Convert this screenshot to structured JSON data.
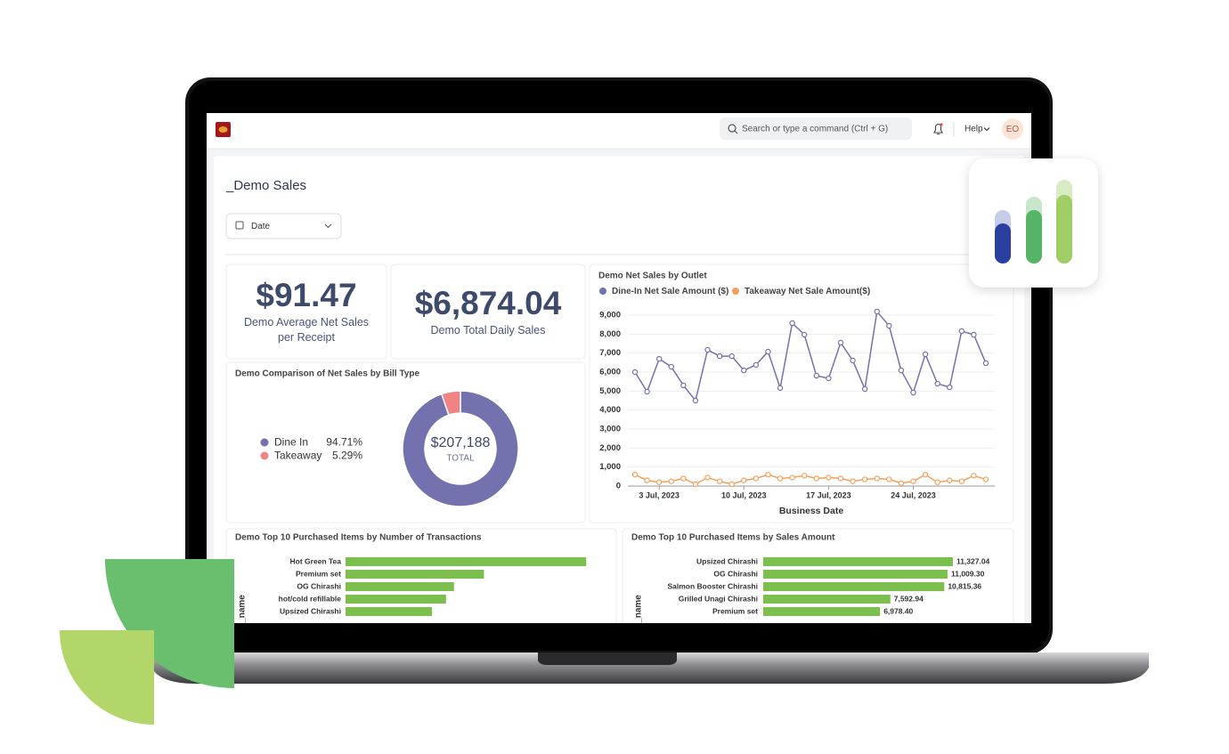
{
  "header": {
    "search_placeholder": "Search or type a command (Ctrl + G)",
    "help": "Help",
    "avatar": "EO"
  },
  "page": {
    "title": "_Demo Sales",
    "filter": "Date"
  },
  "kpis": [
    {
      "value": "$91.47",
      "label": "Demo Average Net Sales per Receipt"
    },
    {
      "value": "$6,874.04",
      "label": "Demo Total Daily Sales"
    }
  ],
  "chart_data": [
    {
      "type": "pie",
      "title": "Demo Comparison of Net Sales by Bill Type",
      "categories": [
        "Dine In",
        "Takeaway"
      ],
      "values": [
        94.71,
        5.29
      ],
      "value_labels": [
        "94.71%",
        "5.29%"
      ],
      "colors": [
        "#7472ae",
        "#f08484"
      ],
      "center_value": "$207,188",
      "center_label": "TOTAL"
    },
    {
      "type": "line",
      "title": "Demo Net Sales by Outlet",
      "categories": [
        null,
        null,
        "3 Jul, 2023",
        null,
        null,
        null,
        null,
        null,
        null,
        "10 Jul, 2023",
        null,
        null,
        null,
        null,
        null,
        null,
        "17 Jul, 2023",
        null,
        null,
        null,
        null,
        null,
        null,
        "24 Jul, 2023",
        null,
        null,
        null,
        null,
        null,
        null
      ],
      "series": [
        {
          "name": "Dine-In Net Sale Amount ($)",
          "color": "#7472ae",
          "values": [
            6000,
            4970,
            6700,
            6280,
            5300,
            4500,
            7170,
            6840,
            6840,
            6090,
            6380,
            7080,
            5160,
            8580,
            7970,
            5810,
            5670,
            7550,
            6610,
            5110,
            9190,
            8440,
            6090,
            4920,
            6940,
            5390,
            5200,
            8160,
            7970,
            6470
          ]
        },
        {
          "name": "Takeaway Net Sale Amount($)",
          "color": "#f5a05a",
          "values": [
            600,
            300,
            200,
            250,
            400,
            100,
            450,
            250,
            100,
            300,
            400,
            600,
            400,
            450,
            550,
            400,
            450,
            400,
            250,
            350,
            400,
            350,
            150,
            250,
            600,
            200,
            300,
            250,
            550,
            350
          ]
        }
      ],
      "ylim": [
        0,
        9000
      ],
      "yticks": [
        0,
        {
          "value": 1000,
          "label": "1,000"
        },
        {
          "value": 2000,
          "label": "2,000"
        },
        {
          "value": 3000,
          "label": "3,000"
        },
        {
          "value": 4000,
          "label": "4,000"
        },
        {
          "value": 5000,
          "label": "5,000"
        },
        {
          "value": 6000,
          "label": "6,000"
        },
        {
          "value": 7000,
          "label": "7,000"
        },
        {
          "value": 8000,
          "label": "8,000"
        },
        {
          "value": 9000,
          "label": "9,000"
        }
      ],
      "xlabel": "Business Date",
      "grid": true
    },
    {
      "type": "barh",
      "title": "Demo Top 10 Purchased Items by Number of Transactions",
      "ylabel": "_name",
      "categories": [
        "Hot Green Tea",
        "Premium set",
        "OG Chirashi",
        "hot/cold refillable",
        "Upsized Chirashi"
      ],
      "values": [
        273,
        157,
        123,
        114,
        98
      ],
      "color": "#7dbf4e",
      "xlim": [
        0,
        300
      ]
    },
    {
      "type": "barh",
      "title": "Demo Top 10 Purchased Items by Sales Amount",
      "ylabel": "_name",
      "categories": [
        "Upsized Chirashi",
        "OG Chirashi",
        "Salmon Booster Chirashi",
        "Grilled Unagi Chirashi",
        "Premium set"
      ],
      "values": [
        11327.04,
        11009.3,
        10815.36,
        7592.94,
        6978.4
      ],
      "value_labels": [
        "11,327.04",
        "11,009.30",
        "10,815.36",
        "7,592.94",
        "6,978.40"
      ],
      "color": "#7dbf4e",
      "xlim": [
        0,
        15000
      ]
    }
  ]
}
